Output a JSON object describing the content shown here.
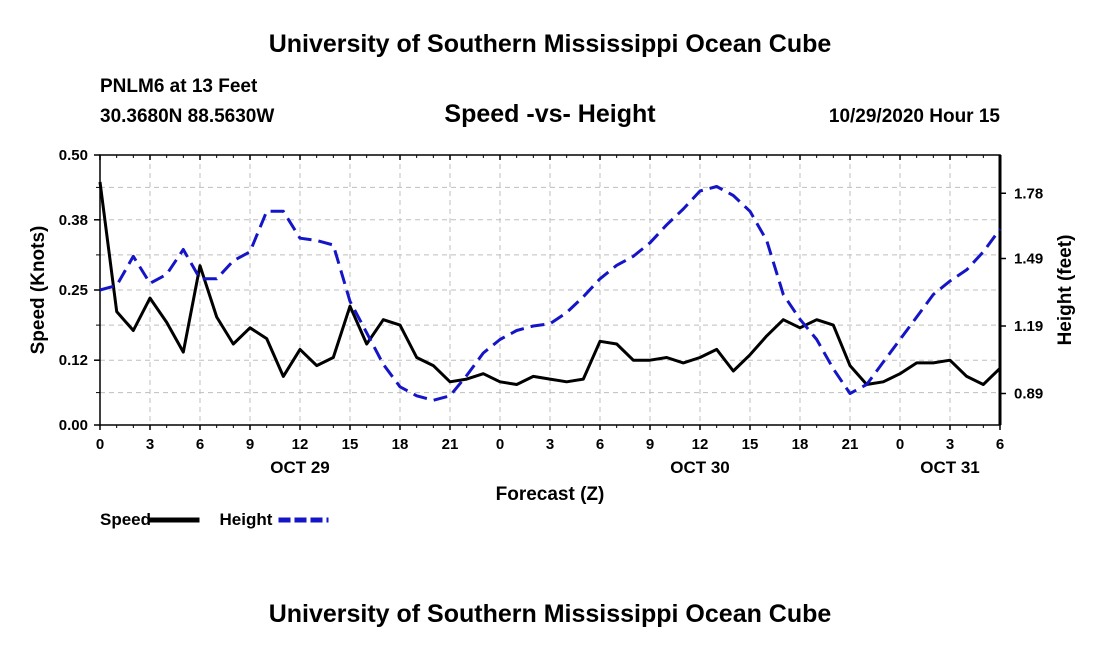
{
  "header": {
    "title": "University of Southern Mississippi Ocean Cube",
    "station": "PNLM6 at 13 Feet",
    "coords": "30.3680N 88.5630W",
    "chart_title": "Speed -vs- Height",
    "timestamp": "10/29/2020 Hour 15"
  },
  "footer": {
    "title": "University of Southern Mississippi Ocean Cube"
  },
  "colors": {
    "speed": "#000000",
    "height": "#1515c8",
    "grid": "#bfbfbf"
  },
  "chart_data": {
    "type": "line",
    "title": "Speed -vs- Height",
    "xlabel": "Forecast (Z)",
    "ylabel_left": "Speed (Knots)",
    "ylabel_right": "Height (feet)",
    "x_range_hours": [
      0,
      54
    ],
    "x_ticks": [
      {
        "h": 0,
        "label": "0"
      },
      {
        "h": 3,
        "label": "3"
      },
      {
        "h": 6,
        "label": "6"
      },
      {
        "h": 9,
        "label": "9"
      },
      {
        "h": 12,
        "label": "12"
      },
      {
        "h": 15,
        "label": "15"
      },
      {
        "h": 18,
        "label": "18"
      },
      {
        "h": 21,
        "label": "21"
      },
      {
        "h": 24,
        "label": "0"
      },
      {
        "h": 27,
        "label": "3"
      },
      {
        "h": 30,
        "label": "6"
      },
      {
        "h": 33,
        "label": "9"
      },
      {
        "h": 36,
        "label": "12"
      },
      {
        "h": 39,
        "label": "15"
      },
      {
        "h": 42,
        "label": "18"
      },
      {
        "h": 45,
        "label": "21"
      },
      {
        "h": 48,
        "label": "0"
      },
      {
        "h": 51,
        "label": "3"
      },
      {
        "h": 54,
        "label": "6"
      }
    ],
    "day_labels": [
      {
        "h": 12,
        "label": "OCT 29"
      },
      {
        "h": 36,
        "label": "OCT 30"
      },
      {
        "h": 51,
        "label": "OCT 31"
      }
    ],
    "y_left": {
      "min": 0,
      "max": 0.5,
      "ticks": [
        "0.00",
        "0.12",
        "0.25",
        "0.38",
        "0.50"
      ]
    },
    "y_right": {
      "min": 0.75,
      "max": 1.95,
      "ticks": [
        "0.89",
        "1.19",
        "1.49",
        "1.78"
      ]
    },
    "legend": [
      {
        "name": "Speed",
        "style": "solid"
      },
      {
        "name": "Height",
        "style": "dashed"
      }
    ],
    "series": [
      {
        "name": "Speed",
        "axis": "left",
        "x": [
          0,
          1,
          2,
          3,
          4,
          5,
          6,
          7,
          8,
          9,
          10,
          11,
          12,
          13,
          14,
          15,
          16,
          17,
          18,
          19,
          20,
          21,
          22,
          23,
          24,
          25,
          26,
          27,
          28,
          29,
          30,
          31,
          32,
          33,
          34,
          35,
          36,
          37,
          38,
          39,
          40,
          41,
          42,
          43,
          44,
          45,
          46,
          47,
          48,
          49,
          50,
          51,
          52,
          53,
          54
        ],
        "values": [
          0.45,
          0.21,
          0.175,
          0.235,
          0.19,
          0.135,
          0.295,
          0.2,
          0.15,
          0.18,
          0.16,
          0.09,
          0.14,
          0.11,
          0.125,
          0.22,
          0.15,
          0.195,
          0.185,
          0.125,
          0.11,
          0.08,
          0.085,
          0.095,
          0.08,
          0.075,
          0.09,
          0.085,
          0.08,
          0.085,
          0.155,
          0.15,
          0.12,
          0.12,
          0.125,
          0.115,
          0.125,
          0.14,
          0.1,
          0.13,
          0.165,
          0.195,
          0.18,
          0.195,
          0.185,
          0.11,
          0.075,
          0.08,
          0.095,
          0.115,
          0.115,
          0.12,
          0.09,
          0.075,
          0.105
        ]
      },
      {
        "name": "Height",
        "axis": "right",
        "x": [
          0,
          1,
          2,
          3,
          4,
          5,
          6,
          7,
          8,
          9,
          10,
          11,
          12,
          13,
          14,
          15,
          16,
          17,
          18,
          19,
          20,
          21,
          22,
          23,
          24,
          25,
          26,
          27,
          28,
          29,
          30,
          31,
          32,
          33,
          34,
          35,
          36,
          37,
          38,
          39,
          40,
          41,
          42,
          43,
          44,
          45,
          46,
          47,
          48,
          49,
          50,
          51,
          52,
          53,
          54
        ],
        "values": [
          1.35,
          1.37,
          1.5,
          1.38,
          1.42,
          1.53,
          1.4,
          1.4,
          1.48,
          1.52,
          1.7,
          1.7,
          1.58,
          1.57,
          1.55,
          1.3,
          1.16,
          1.02,
          0.92,
          0.88,
          0.86,
          0.88,
          0.97,
          1.07,
          1.13,
          1.17,
          1.19,
          1.2,
          1.25,
          1.32,
          1.4,
          1.46,
          1.5,
          1.56,
          1.64,
          1.71,
          1.79,
          1.81,
          1.77,
          1.7,
          1.57,
          1.33,
          1.22,
          1.13,
          1.0,
          0.89,
          0.93,
          1.03,
          1.13,
          1.23,
          1.33,
          1.39,
          1.44,
          1.52,
          1.62
        ]
      }
    ]
  }
}
